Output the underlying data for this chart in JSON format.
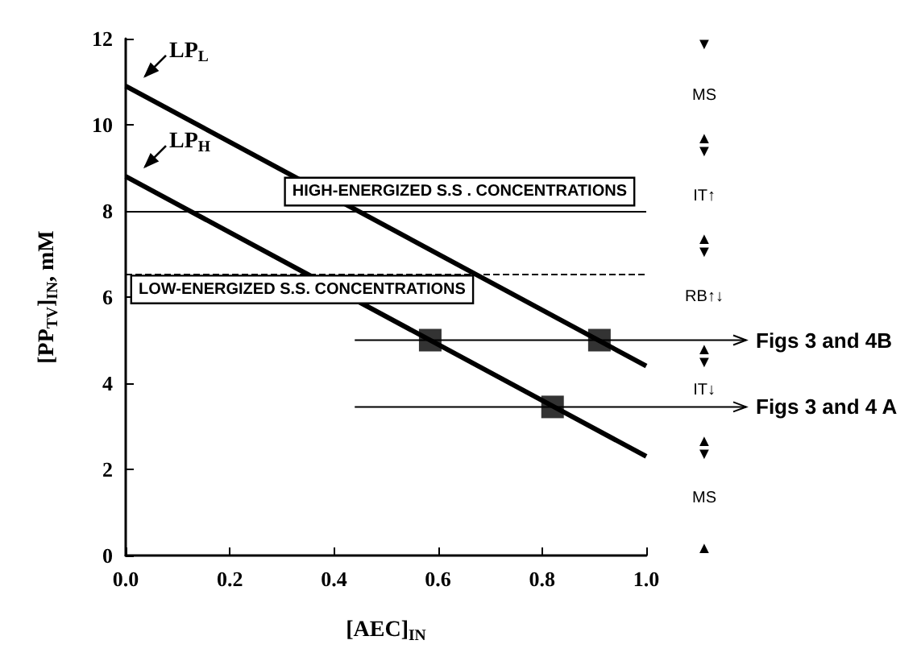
{
  "chart_data": {
    "type": "line",
    "xlabel": "[AEC]$_{IN}$",
    "ylabel": "[PP$_{TV}$]$_{IN}$, mM",
    "xlim": [
      0,
      1
    ],
    "xticks": [
      {
        "value": 0,
        "label": "0.0"
      },
      0.2,
      0.4,
      0.6,
      0.8,
      {
        "value": 1,
        "label": "1.0"
      }
    ],
    "ylim": [
      0,
      12
    ],
    "yticks": [
      0,
      2,
      4,
      6,
      8,
      10,
      12
    ],
    "series": [
      {
        "name": "LP$_{L}$",
        "color": "#000000",
        "x": [
          0,
          1
        ],
        "values": [
          10.9,
          4.4
        ]
      },
      {
        "name": "LP$_{H}$",
        "color": "#000000",
        "x": [
          0,
          1
        ],
        "values": [
          8.8,
          2.3
        ]
      },
      {
        "type": "scatter",
        "marker": "square",
        "color": "#000000",
        "x": [
          0.585,
          0.91,
          0.82
        ],
        "values": [
          5.0,
          5.0,
          3.45
        ]
      }
    ],
    "marker": "none",
    "legend": "top left",
    "grid": false,
    "ref_lines": [
      {
        "axis": "y",
        "value": 8,
        "label": "HIGH-ENERGIZED S.S . CONCENTRATIONS",
        "color": "#000000",
        "line_style": "solid"
      },
      {
        "axis": "y",
        "value": 6.55,
        "label": "LOW-ENERGIZED S.S. CONCENTRATIONS",
        "color": "#000000",
        "line_style": "dashed"
      },
      {
        "axis": "y",
        "value": 5.0,
        "label": "Figs 3 and 4B",
        "color": "#000000",
        "line_style": "solid"
      },
      {
        "axis": "y",
        "value": 3.45,
        "label": "Figs 3 and 4 A",
        "color": "#000000",
        "line_style": "solid"
      }
    ],
    "annotations": [
      "▼",
      "MS",
      "▲\n▼",
      "IT↑",
      "▲\n▼",
      "RB↑↓",
      "▲\n▼",
      "IT↓",
      "▲\n▼",
      "MS",
      "▲"
    ]
  }
}
